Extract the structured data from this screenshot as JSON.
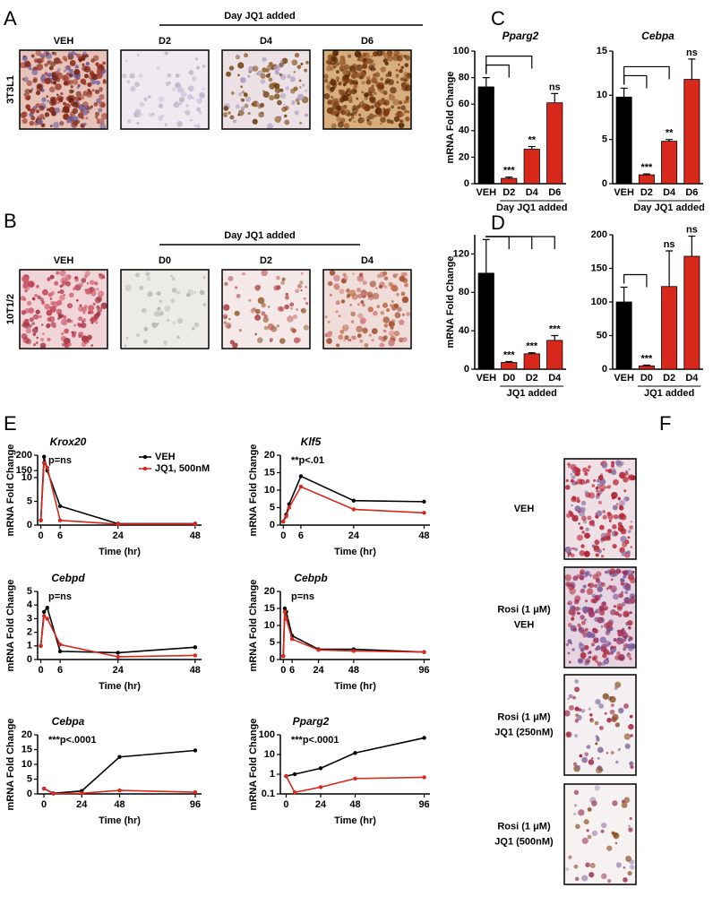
{
  "panel_a": {
    "label": "A",
    "header": "Day JQ1 added",
    "row_label": "3T3L1",
    "images": [
      "VEH",
      "D2",
      "D4",
      "D6"
    ]
  },
  "panel_b": {
    "label": "B",
    "header": "Day JQ1 added",
    "row_label": "10T1/2",
    "images": [
      "VEH",
      "D0",
      "D2",
      "D4"
    ]
  },
  "panel_labels": {
    "c": "C",
    "d": "D",
    "e": "E"
  },
  "panel_f": {
    "label": "F",
    "images": [
      [
        "VEH"
      ],
      [
        "Rosi (1 μM)",
        "VEH"
      ],
      [
        "Rosi (1 μM)",
        "JQ1 (250nM)"
      ],
      [
        "Rosi (1 μM)",
        "JQ1 (500nM)"
      ]
    ]
  },
  "chart_data": [
    {
      "type": "bar",
      "title": "Pparg2",
      "ylabel": "mRNA Fold Change",
      "xlabel": "Day JQ1 added",
      "categories": [
        "VEH",
        "D2",
        "D4",
        "D6"
      ],
      "values": [
        73,
        4,
        26,
        61
      ],
      "errors": [
        7,
        1,
        2,
        7
      ],
      "colors": [
        "#000000",
        "#d8281c",
        "#d8281c",
        "#d8281c"
      ],
      "annotations": [
        null,
        "***",
        "**",
        "ns"
      ],
      "brackets": [
        false,
        true,
        true,
        false
      ],
      "ylim": [
        0,
        100
      ],
      "yticks": [
        0,
        20,
        40,
        60,
        80,
        100
      ]
    },
    {
      "type": "bar",
      "title": "Cebpa",
      "xlabel": "Day JQ1 added",
      "categories": [
        "VEH",
        "D2",
        "D4",
        "D6"
      ],
      "values": [
        9.8,
        1,
        4.8,
        11.8
      ],
      "errors": [
        1,
        0.1,
        0.2,
        2.3
      ],
      "colors": [
        "#000000",
        "#d8281c",
        "#d8281c",
        "#d8281c"
      ],
      "annotations": [
        null,
        "***",
        "**",
        "ns"
      ],
      "brackets": [
        false,
        true,
        true,
        false
      ],
      "ylim": [
        0,
        15
      ],
      "yticks": [
        0,
        5,
        10,
        15
      ]
    },
    {
      "type": "bar",
      "ylabel": "mRNA Fold Change",
      "xlabel": "JQ1 added",
      "categories": [
        "VEH",
        "D0",
        "D2",
        "D4"
      ],
      "values": [
        100,
        7,
        16,
        30
      ],
      "errors": [
        35,
        1,
        1,
        5
      ],
      "colors": [
        "#000000",
        "#d8281c",
        "#d8281c",
        "#d8281c"
      ],
      "annotations": [
        null,
        "***",
        "***",
        "***"
      ],
      "brackets": [
        false,
        true,
        true,
        true
      ],
      "ylim": [
        0,
        140
      ],
      "yticks": [
        0,
        40,
        80,
        120
      ]
    },
    {
      "type": "bar",
      "xlabel": "JQ1 added",
      "categories": [
        "VEH",
        "D0",
        "D2",
        "D4"
      ],
      "values": [
        100,
        5,
        123,
        168
      ],
      "errors": [
        22,
        1,
        53,
        30
      ],
      "colors": [
        "#000000",
        "#d8281c",
        "#d8281c",
        "#d8281c"
      ],
      "annotations": [
        null,
        "***",
        "ns",
        "ns"
      ],
      "brackets": [
        false,
        true,
        false,
        false
      ],
      "ylim": [
        0,
        200
      ],
      "yticks": [
        0,
        50,
        100,
        150,
        200
      ]
    },
    {
      "type": "line",
      "title": "Krox20",
      "ylabel": "mRNA Fold Change",
      "xlabel": "Time (hr)",
      "annotation": "p=ns",
      "x": [
        0,
        1,
        2,
        6,
        24,
        48
      ],
      "xlim": [
        -1,
        50
      ],
      "xticks": [
        0,
        6,
        24,
        48
      ],
      "ylim": [
        0,
        200
      ],
      "ybreak": [
        10,
        150
      ],
      "yticks": [
        0,
        5,
        10,
        150,
        200
      ],
      "legend": "upper right",
      "series": [
        {
          "name": "VEH",
          "color": "#000000",
          "values": [
            1,
            195,
            150,
            4,
            0.3,
            0.3
          ]
        },
        {
          "name": "JQ1, 500nM",
          "color": "#d8281c",
          "values": [
            1,
            175,
            160,
            1,
            0.2,
            0.2
          ]
        }
      ]
    },
    {
      "type": "line",
      "title": "Klf5",
      "ylabel": "mRNA Fold Change",
      "xlabel": "Time (hr)",
      "annotation": "**p<.01",
      "x": [
        0,
        1,
        2,
        6,
        24,
        48
      ],
      "xlim": [
        -1,
        50
      ],
      "xticks": [
        0,
        6,
        24,
        48
      ],
      "ylim": [
        0,
        20
      ],
      "yticks": [
        0,
        5,
        10,
        15,
        20
      ],
      "series": [
        {
          "color": "#000000",
          "values": [
            1,
            3,
            6,
            14,
            7,
            6.7
          ]
        },
        {
          "color": "#d8281c",
          "values": [
            1,
            2.5,
            5,
            11,
            4.5,
            3.5
          ]
        }
      ]
    },
    {
      "type": "line",
      "title": "Cebpd",
      "ylabel": "mRNA Fold Change",
      "xlabel": "Time (hr)",
      "annotation": "p=ns",
      "x": [
        0,
        1,
        2,
        6,
        24,
        48
      ],
      "xlim": [
        -1,
        50
      ],
      "xticks": [
        0,
        6,
        24,
        48
      ],
      "ylim": [
        0,
        5
      ],
      "yticks": [
        0,
        1,
        2,
        3,
        4,
        5
      ],
      "series": [
        {
          "color": "#000000",
          "values": [
            1,
            3.5,
            3.8,
            0.6,
            0.5,
            0.9
          ]
        },
        {
          "color": "#d8281c",
          "values": [
            1,
            3.2,
            3,
            1.1,
            0.2,
            0.3
          ]
        }
      ]
    },
    {
      "type": "line",
      "title": "Cebpb",
      "ylabel": "mRNA Fold Change",
      "xlabel": "Time (hr)",
      "annotation": "p=ns",
      "x": [
        0,
        1,
        2,
        6,
        24,
        48,
        96
      ],
      "xlim": [
        -2,
        100
      ],
      "xticks": [
        0,
        6,
        24,
        48,
        96
      ],
      "ylim": [
        0,
        20
      ],
      "yticks": [
        0,
        5,
        10,
        15,
        20
      ],
      "series": [
        {
          "color": "#000000",
          "values": [
            1,
            15,
            14,
            7,
            3,
            3,
            2.2
          ]
        },
        {
          "color": "#d8281c",
          "values": [
            1,
            14,
            12,
            6,
            2.8,
            2.5,
            2.2
          ]
        }
      ]
    },
    {
      "type": "line",
      "title": "Cebpa",
      "ylabel": "mRNA Fold Change",
      "xlabel": "Time (hr)",
      "annotation": "***p<.0001",
      "x": [
        0,
        6,
        24,
        48,
        96
      ],
      "xlim": [
        -4,
        100
      ],
      "xticks": [
        0,
        24,
        48,
        96
      ],
      "ylim": [
        0,
        20
      ],
      "yticks": [
        0,
        5,
        10,
        15,
        20
      ],
      "series": [
        {
          "color": "#000000",
          "values": [
            1.8,
            0.2,
            1,
            12.5,
            14.7
          ]
        },
        {
          "color": "#d8281c",
          "values": [
            1.8,
            0.1,
            0.2,
            1.2,
            0.6
          ]
        }
      ]
    },
    {
      "type": "line",
      "title": "Pparg2",
      "ylabel": "mRNA Fold Change",
      "xlabel": "Time (hr)",
      "annotation": "***p<.0001",
      "x": [
        0,
        6,
        24,
        48,
        96
      ],
      "xlim": [
        -4,
        100
      ],
      "xticks": [
        0,
        24,
        48,
        96
      ],
      "ylim": [
        0.1,
        100
      ],
      "log_y": true,
      "yticks": [
        0.1,
        1,
        10,
        100
      ],
      "series": [
        {
          "color": "#000000",
          "values": [
            0.8,
            1,
            2,
            12,
            70
          ]
        },
        {
          "color": "#d8281c",
          "values": [
            0.8,
            0.12,
            0.22,
            0.6,
            0.7
          ]
        }
      ]
    }
  ]
}
